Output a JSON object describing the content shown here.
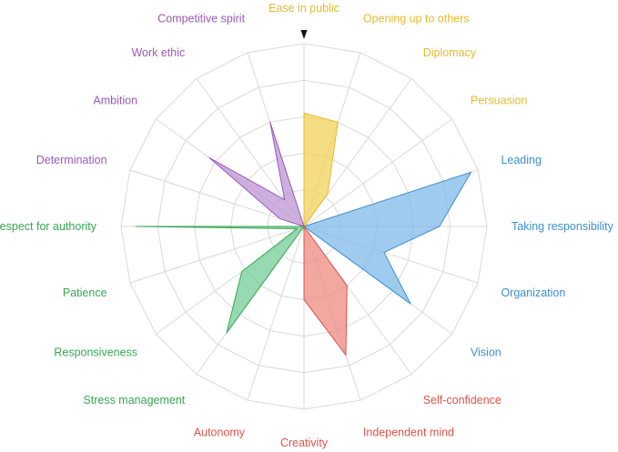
{
  "chart_data": {
    "type": "radar",
    "title": "",
    "rmax": 5,
    "rings": 5,
    "grid": true,
    "legend": "none",
    "start_marker": "triangle-down-icon",
    "axes": [
      {
        "label": "Ease in public",
        "color": "#e8b92c"
      },
      {
        "label": "Opening up to others",
        "color": "#e8b92c"
      },
      {
        "label": "Diplomacy",
        "color": "#e8b92c"
      },
      {
        "label": "Persuasion",
        "color": "#e8b92c"
      },
      {
        "label": "Leading",
        "color": "#3b8fd0"
      },
      {
        "label": "Taking responsibility",
        "color": "#3b8fd0"
      },
      {
        "label": "Organization",
        "color": "#3b8fd0"
      },
      {
        "label": "Vision",
        "color": "#3b8fd0"
      },
      {
        "label": "Self-confidence",
        "color": "#e0524a"
      },
      {
        "label": "Independent mind",
        "color": "#e0524a"
      },
      {
        "label": "Creativity",
        "color": "#e0524a"
      },
      {
        "label": "Autonomy",
        "color": "#e0524a"
      },
      {
        "label": "Stress management",
        "color": "#35a853"
      },
      {
        "label": "Responsiveness",
        "color": "#35a853"
      },
      {
        "label": "Patience",
        "color": "#35a853"
      },
      {
        "label": "Respect for authority",
        "color": "#35a853"
      },
      {
        "label": "Determination",
        "color": "#9b59b6"
      },
      {
        "label": "Ambition",
        "color": "#9b59b6"
      },
      {
        "label": "Work ethic",
        "color": "#9b59b6"
      },
      {
        "label": "Competitive spirit",
        "color": "#9b59b6"
      }
    ],
    "series": [
      {
        "color": "#f2d15a",
        "stroke": "#e8b92c",
        "axes": [
          0,
          1,
          2,
          3
        ],
        "values": [
          3.1,
          3.0,
          1.1,
          0
        ]
      },
      {
        "color": "#7db9e8",
        "stroke": "#3b8fd0",
        "axes": [
          4,
          5,
          6,
          7
        ],
        "values": [
          4.8,
          3.7,
          2.3,
          3.6
        ]
      },
      {
        "color": "#ee8a80",
        "stroke": "#e0524a",
        "axes": [
          8,
          9,
          10,
          11
        ],
        "values": [
          2.0,
          3.7,
          2.0,
          0
        ]
      },
      {
        "color": "#74cc96",
        "stroke": "#35a853",
        "axes": [
          12,
          13,
          14,
          15
        ],
        "values": [
          3.6,
          2.1,
          0.2,
          4.6
        ]
      },
      {
        "color": "#be95d6",
        "stroke": "#9b59b6",
        "axes": [
          16,
          17,
          18,
          19
        ],
        "values": [
          0.7,
          3.2,
          0.9,
          3.0
        ]
      }
    ]
  }
}
